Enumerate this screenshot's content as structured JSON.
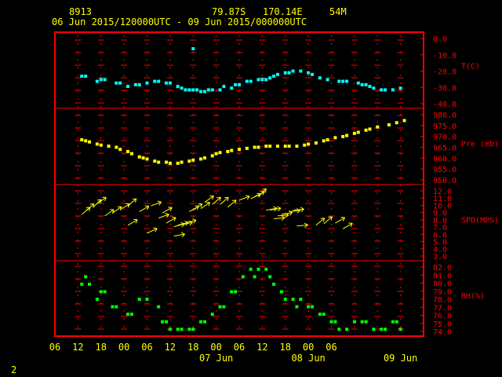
{
  "header": {
    "station_id": "8913",
    "location": "79.87S   170.14E",
    "elevation": "54M",
    "date_range": "06 Jun 2015/120000UTC - 09 Jun 2015/000000UTC"
  },
  "footer_page": "2",
  "colors": {
    "frame": "#ff0000",
    "grid": "#ff0000",
    "labels": "#ff0000",
    "header": "#ffff00",
    "temperature": "#00ffff",
    "pressure": "#ffff00",
    "wind": "#ffff00",
    "rh": "#00ff00"
  },
  "x_axis": {
    "hour_ticks": [
      "06",
      "12",
      "18",
      "00",
      "06",
      "12",
      "18",
      "00",
      "06",
      "12",
      "18",
      "00",
      "06"
    ],
    "date_labels": [
      {
        "label": "07 Jun",
        "at_hour": 48
      },
      {
        "label": "08 Jun",
        "at_hour": 72
      },
      {
        "label": "09 Jun",
        "at_hour": 96
      }
    ]
  },
  "panels": [
    {
      "key": "temp",
      "label": "T(C)",
      "ticks": [
        "0.0",
        "-10.0",
        "-20.0",
        "-30.0",
        "-40.0"
      ]
    },
    {
      "key": "pres",
      "label": "Pre (mb)",
      "ticks": [
        "980.0",
        "975.0",
        "970.0",
        "965.0",
        "960.0",
        "955.0",
        "950.0"
      ]
    },
    {
      "key": "wind",
      "label": "SPD(MPS)",
      "ticks": [
        "12.0",
        "11.0",
        "10.0",
        "9.0",
        "8.0",
        "7.0",
        "6.0",
        "5.0",
        "4.0",
        "3.0"
      ]
    },
    {
      "key": "rh",
      "label": "RH(%)",
      "ticks": [
        "82.0",
        "81.0",
        "80.0",
        "79.0",
        "78.0",
        "77.0",
        "76.0",
        "75.0",
        "74.0"
      ]
    }
  ],
  "chart_data": {
    "type": "scatter",
    "x_unit": "hours since 06 Jun 2015 00 UTC",
    "xlim": [
      6,
      102
    ],
    "series": [
      {
        "key": "temp",
        "ylim": [
          -40,
          0
        ],
        "x": [
          13,
          14,
          17,
          18,
          19,
          22,
          23,
          25,
          27,
          28,
          30,
          32,
          33,
          35,
          36,
          38,
          39,
          40,
          41,
          42,
          43,
          44,
          45,
          46,
          47,
          49,
          50,
          52,
          53,
          54,
          56,
          57,
          59,
          60,
          61,
          62,
          63,
          64,
          66,
          67,
          68,
          70,
          72,
          73,
          75,
          77,
          80,
          81,
          82,
          85,
          86,
          87,
          88,
          89,
          91,
          92,
          94,
          96
        ],
        "y": [
          -23,
          -23,
          -26,
          -25,
          -25,
          -27,
          -27,
          -29,
          -28,
          -28,
          -27,
          -26,
          -26,
          -27,
          -27,
          -29,
          -30,
          -31,
          -31,
          -31,
          -31,
          -32,
          -32,
          -31,
          -31,
          -31,
          -29,
          -30,
          -28,
          -28,
          -26,
          -26,
          -25,
          -25,
          -25,
          -24,
          -23,
          -22,
          -21,
          -21,
          -20,
          -20,
          -21,
          -22,
          -24,
          -25,
          -26,
          -26,
          -26,
          -27,
          -28,
          -28,
          -29,
          -30,
          -31,
          -31,
          -31,
          -30
        ]
      },
      {
        "key": "pres",
        "ylim": [
          950,
          982
        ],
        "x": [
          13,
          14,
          15,
          17,
          18,
          20,
          22,
          23,
          25,
          26,
          28,
          29,
          30,
          32,
          33,
          35,
          36,
          38,
          39,
          41,
          42,
          44,
          45,
          47,
          48,
          49,
          51,
          52,
          54,
          56,
          58,
          59,
          61,
          62,
          64,
          66,
          67,
          69,
          71,
          72,
          74,
          76,
          77,
          79,
          81,
          82,
          84,
          85,
          87,
          88,
          90,
          93,
          95,
          97
        ],
        "y": [
          969.5,
          969,
          968.5,
          967.5,
          967,
          966.5,
          966,
          965,
          964,
          963,
          961.5,
          961,
          960.5,
          959.5,
          959,
          959,
          958.5,
          958.5,
          959,
          959.5,
          960,
          960.5,
          961,
          962,
          963,
          963.5,
          964,
          964.5,
          965,
          965.5,
          966,
          966,
          966.5,
          966.5,
          966.5,
          966.5,
          966.5,
          966.5,
          967,
          967.5,
          968,
          969,
          969.5,
          970.5,
          971,
          971.5,
          972.5,
          973,
          974,
          974.5,
          975.5,
          976.5,
          977.5,
          978.5
        ]
      },
      {
        "key": "wind",
        "ylim": [
          3,
          12.5
        ],
        "dirs_deg_screen": [
          -40,
          -40,
          -45,
          -35,
          -35,
          -35,
          -30,
          -30,
          -40,
          -30,
          -25,
          -20,
          -20,
          -30,
          -30,
          -10,
          -15,
          -15,
          -10,
          -15,
          -30,
          -35,
          -35,
          -35,
          -40,
          -40,
          -40,
          -20,
          -25,
          -25,
          -45,
          -10,
          -10,
          -5,
          -5,
          -10,
          -5,
          -5,
          -5,
          -40,
          -40,
          -30,
          -30
        ],
        "x": [
          13,
          14,
          16,
          17,
          19,
          21,
          23,
          25,
          25,
          28,
          30,
          31,
          33,
          34,
          35,
          37,
          37,
          38,
          39,
          40,
          41,
          42,
          44,
          45,
          47,
          49,
          51,
          54,
          57,
          58,
          59,
          61,
          62,
          63,
          64,
          65,
          67,
          68,
          69,
          74,
          76,
          79,
          81
        ],
        "y": [
          9,
          9.5,
          10,
          10.5,
          8.8,
          9.2,
          9.7,
          7.5,
          10.2,
          9.4,
          6.4,
          10.2,
          8.5,
          9.2,
          7.8,
          6,
          7.3,
          7.5,
          7.6,
          7.8,
          9.4,
          9.6,
          9.8,
          10.7,
          10.4,
          10.4,
          10.0,
          11.0,
          11.2,
          11.5,
          11.5,
          9.6,
          9.6,
          8.4,
          8.8,
          9.0,
          9.4,
          9.6,
          7.4,
          7.5,
          7.7,
          7.8,
          7.0
        ],
        "values_label": "wind barbs (speed MPS, direction)"
      },
      {
        "key": "rh",
        "ylim": [
          73.5,
          82.5
        ],
        "x": [
          13,
          14,
          15,
          17,
          18,
          19,
          21,
          22,
          25,
          26,
          28,
          30,
          33,
          34,
          35,
          36,
          38,
          39,
          41,
          42,
          44,
          45,
          47,
          49,
          50,
          52,
          53,
          55,
          57,
          58,
          59,
          61,
          62,
          63,
          65,
          66,
          68,
          69,
          70,
          72,
          73,
          75,
          76,
          78,
          79,
          80,
          82,
          84,
          86,
          87,
          89,
          91,
          92,
          94,
          95,
          96
        ],
        "y": [
          80,
          81,
          80,
          78,
          79,
          79,
          77,
          77,
          76,
          76,
          78,
          78,
          77,
          75,
          75,
          74,
          74,
          74,
          74,
          74,
          75,
          75,
          76,
          77,
          77,
          79,
          79,
          81,
          82,
          81,
          82,
          82,
          81,
          80,
          79,
          78,
          78,
          77,
          78,
          77,
          77,
          76,
          76,
          75,
          75,
          74,
          74,
          75,
          75,
          75,
          74,
          74,
          74,
          75,
          75,
          74
        ]
      }
    ]
  }
}
